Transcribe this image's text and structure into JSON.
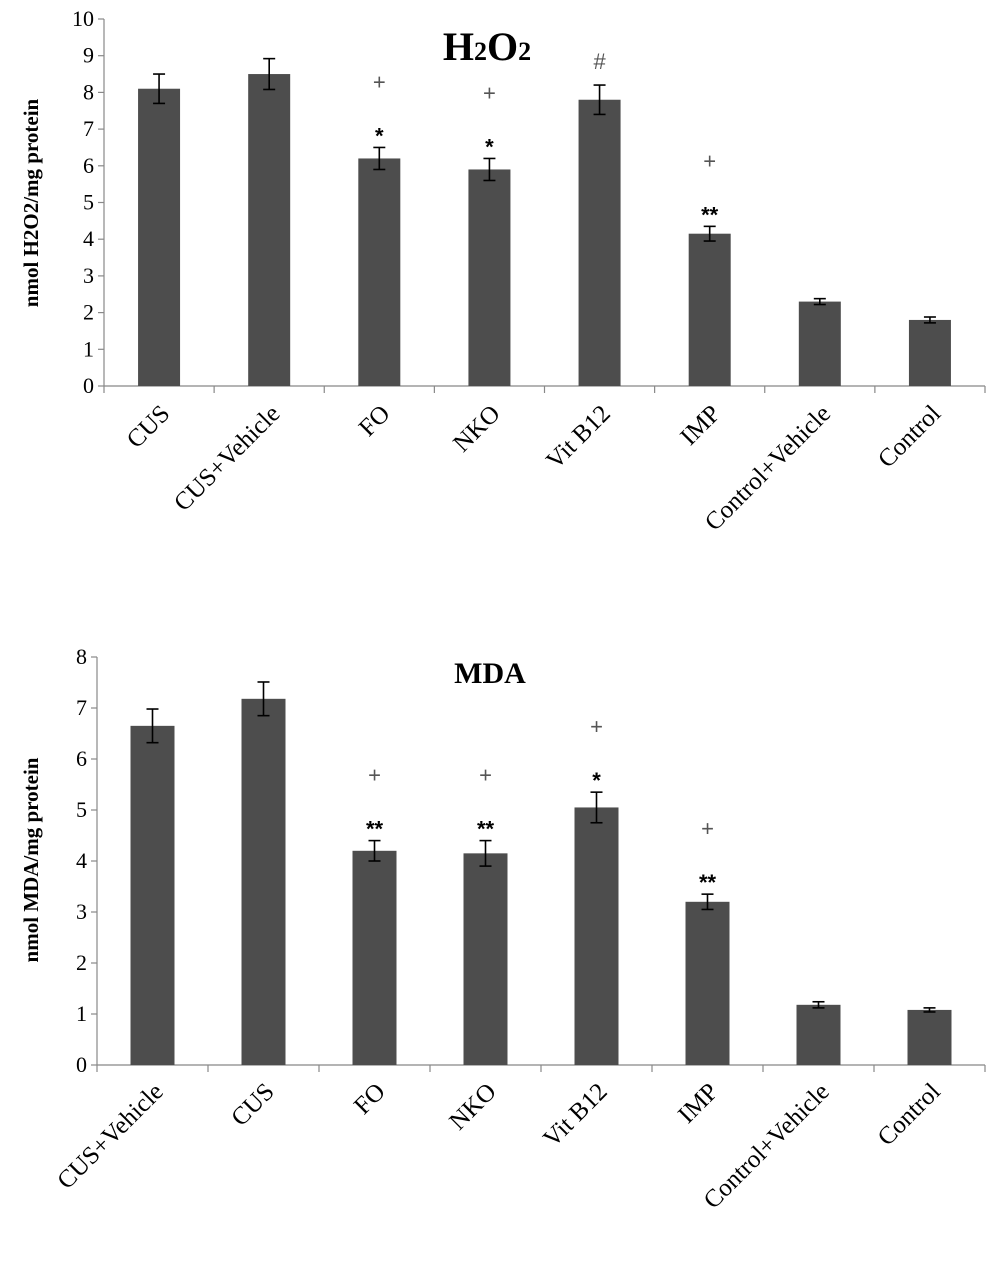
{
  "chart_data": [
    {
      "type": "bar",
      "title": "H2O2",
      "title_parts": {
        "main": "H",
        "sub1": "2",
        "mid": "O",
        "sub2": "2"
      },
      "ylabel": "nmol  H2O2/mg protein",
      "xlabel": "",
      "ylim": [
        0,
        10
      ],
      "yticks": [
        0,
        1,
        2,
        3,
        4,
        5,
        6,
        7,
        8,
        9,
        10
      ],
      "categories": [
        "CUS",
        "CUS+Vehicle",
        "FO",
        "NKO",
        "Vit B12",
        "IMP",
        "Control+Vehicle",
        "Control"
      ],
      "values": [
        8.1,
        8.5,
        6.2,
        5.9,
        7.8,
        4.15,
        2.3,
        1.8
      ],
      "errors": [
        0.4,
        0.42,
        0.3,
        0.3,
        0.4,
        0.2,
        0.08,
        0.08
      ],
      "annotations": [
        {
          "index": 2,
          "marks": [
            "+",
            "*"
          ]
        },
        {
          "index": 3,
          "marks": [
            "+",
            "*"
          ]
        },
        {
          "index": 4,
          "marks": [
            "#"
          ]
        },
        {
          "index": 5,
          "marks": [
            "+",
            "**"
          ]
        }
      ],
      "bar_color": "#4d4d4d"
    },
    {
      "type": "bar",
      "title": "MDA",
      "ylabel": "nmol  MDA/mg protein",
      "xlabel": "",
      "ylim": [
        0,
        8
      ],
      "yticks": [
        0,
        1,
        2,
        3,
        4,
        5,
        6,
        7,
        8
      ],
      "categories": [
        "CUS+Vehicle",
        "CUS",
        "FO",
        "NKO",
        "Vit B12",
        "IMP",
        "Control+Vehicle",
        "Control"
      ],
      "values": [
        6.65,
        7.18,
        4.2,
        4.15,
        5.05,
        3.2,
        1.18,
        1.08
      ],
      "errors": [
        0.33,
        0.33,
        0.2,
        0.25,
        0.3,
        0.15,
        0.06,
        0.04
      ],
      "annotations": [
        {
          "index": 2,
          "marks": [
            "+",
            "**"
          ]
        },
        {
          "index": 3,
          "marks": [
            "+",
            "**"
          ]
        },
        {
          "index": 4,
          "marks": [
            "+",
            "*"
          ]
        },
        {
          "index": 5,
          "marks": [
            "+",
            "**"
          ]
        }
      ],
      "bar_color": "#4d4d4d"
    }
  ]
}
